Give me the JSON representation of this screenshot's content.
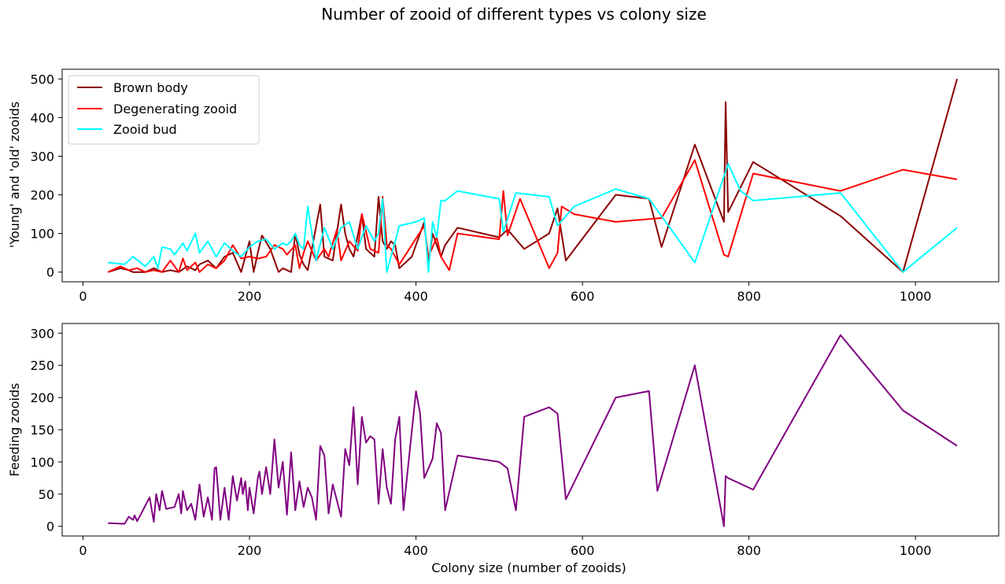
{
  "title": "Number of zooid of different types vs colony size",
  "chart_data": [
    {
      "type": "line",
      "xlabel": "",
      "ylabel": "'Young' and 'old' zooids",
      "xlim": [
        -25,
        1100
      ],
      "ylim": [
        -25,
        525
      ],
      "xticks": [
        0,
        200,
        400,
        600,
        800,
        1000
      ],
      "yticks": [
        0,
        100,
        200,
        300,
        400,
        500
      ],
      "legend": "top-left",
      "series": [
        {
          "name": "Brown body",
          "color": "#8b0000",
          "x": [
            30,
            45,
            55,
            60,
            75,
            85,
            95,
            105,
            115,
            125,
            135,
            140,
            150,
            160,
            170,
            180,
            190,
            200,
            205,
            210,
            215,
            225,
            235,
            240,
            250,
            255,
            260,
            265,
            270,
            275,
            285,
            290,
            300,
            310,
            315,
            320,
            325,
            335,
            340,
            350,
            355,
            360,
            365,
            370,
            375,
            380,
            395,
            410,
            415,
            420,
            425,
            430,
            435,
            450,
            500,
            510,
            520,
            530,
            560,
            570,
            580,
            640,
            680,
            695,
            735,
            770,
            772,
            775,
            805,
            910,
            985,
            1050
          ],
          "y": [
            0,
            10,
            5,
            0,
            0,
            10,
            0,
            5,
            0,
            15,
            5,
            20,
            30,
            10,
            40,
            50,
            0,
            80,
            0,
            50,
            95,
            60,
            0,
            10,
            0,
            100,
            45,
            20,
            5,
            60,
            175,
            40,
            30,
            175,
            100,
            60,
            40,
            150,
            60,
            40,
            195,
            80,
            60,
            80,
            70,
            10,
            40,
            130,
            20,
            100,
            70,
            40,
            70,
            115,
            90,
            110,
            85,
            60,
            100,
            165,
            30,
            200,
            190,
            65,
            330,
            130,
            440,
            155,
            285,
            145,
            0,
            500
          ]
        },
        {
          "name": "Degenerating zooid",
          "color": "#ff0000",
          "x": [
            30,
            45,
            55,
            65,
            75,
            85,
            95,
            105,
            115,
            120,
            125,
            135,
            140,
            150,
            160,
            170,
            180,
            190,
            200,
            210,
            220,
            230,
            240,
            245,
            255,
            260,
            265,
            270,
            280,
            290,
            295,
            305,
            310,
            320,
            330,
            335,
            345,
            355,
            360,
            365,
            370,
            380,
            410,
            415,
            425,
            430,
            440,
            450,
            500,
            505,
            510,
            525,
            560,
            570,
            575,
            590,
            640,
            695,
            735,
            770,
            775,
            805,
            910,
            985,
            1050
          ],
          "y": [
            0,
            15,
            5,
            10,
            0,
            5,
            0,
            30,
            0,
            35,
            5,
            25,
            0,
            20,
            10,
            30,
            70,
            35,
            40,
            35,
            40,
            70,
            60,
            45,
            70,
            10,
            50,
            80,
            30,
            60,
            40,
            110,
            30,
            80,
            55,
            150,
            60,
            50,
            195,
            70,
            60,
            20,
            120,
            40,
            90,
            40,
            5,
            100,
            85,
            210,
            95,
            190,
            10,
            50,
            170,
            150,
            130,
            140,
            290,
            45,
            40,
            255,
            210,
            265,
            240
          ]
        },
        {
          "name": "Zooid bud",
          "color": "#00ffff",
          "x": [
            30,
            50,
            60,
            75,
            85,
            90,
            95,
            105,
            110,
            120,
            125,
            135,
            140,
            150,
            160,
            170,
            180,
            190,
            200,
            210,
            220,
            230,
            240,
            245,
            250,
            255,
            260,
            265,
            270,
            280,
            290,
            300,
            310,
            320,
            330,
            340,
            350,
            355,
            360,
            365,
            375,
            380,
            400,
            410,
            415,
            420,
            425,
            430,
            435,
            450,
            500,
            505,
            520,
            560,
            570,
            590,
            640,
            680,
            735,
            775,
            790,
            805,
            910,
            985,
            1050
          ],
          "y": [
            25,
            20,
            40,
            15,
            40,
            10,
            65,
            60,
            45,
            75,
            55,
            100,
            50,
            80,
            40,
            75,
            55,
            40,
            65,
            80,
            85,
            60,
            75,
            70,
            80,
            100,
            70,
            60,
            170,
            30,
            115,
            60,
            115,
            130,
            60,
            120,
            80,
            100,
            190,
            0,
            80,
            120,
            130,
            140,
            0,
            130,
            90,
            185,
            185,
            210,
            190,
            105,
            205,
            195,
            120,
            170,
            215,
            190,
            25,
            280,
            210,
            185,
            205,
            0,
            115
          ]
        }
      ]
    },
    {
      "type": "line",
      "xlabel": "Colony size (number of zooids)",
      "ylabel": "Feeding zooids",
      "xlim": [
        -25,
        1100
      ],
      "ylim": [
        -15,
        315
      ],
      "xticks": [
        0,
        200,
        400,
        600,
        800,
        1000
      ],
      "yticks": [
        0,
        50,
        100,
        150,
        200,
        250,
        300
      ],
      "series": [
        {
          "name": "",
          "color": "#800080",
          "x": [
            30,
            50,
            55,
            60,
            62,
            65,
            70,
            80,
            85,
            88,
            92,
            95,
            100,
            110,
            115,
            118,
            120,
            125,
            130,
            135,
            140,
            145,
            150,
            155,
            158,
            160,
            165,
            170,
            175,
            180,
            185,
            190,
            192,
            195,
            198,
            200,
            205,
            210,
            212,
            215,
            220,
            225,
            230,
            235,
            240,
            245,
            250,
            255,
            260,
            265,
            270,
            275,
            280,
            285,
            290,
            295,
            300,
            305,
            310,
            315,
            320,
            325,
            330,
            335,
            340,
            345,
            350,
            355,
            360,
            365,
            370,
            375,
            380,
            385,
            400,
            405,
            410,
            420,
            425,
            430,
            435,
            450,
            500,
            510,
            520,
            530,
            560,
            570,
            580,
            640,
            680,
            690,
            735,
            770,
            772,
            775,
            805,
            910,
            985,
            1050
          ],
          "y": [
            5,
            4,
            15,
            10,
            17,
            8,
            20,
            45,
            7,
            50,
            25,
            55,
            27,
            30,
            50,
            20,
            55,
            25,
            35,
            10,
            65,
            15,
            45,
            10,
            90,
            92,
            10,
            60,
            10,
            78,
            40,
            75,
            50,
            70,
            25,
            60,
            20,
            75,
            85,
            50,
            92,
            50,
            135,
            60,
            100,
            18,
            115,
            25,
            70,
            30,
            60,
            45,
            10,
            125,
            110,
            20,
            65,
            40,
            15,
            120,
            95,
            185,
            65,
            170,
            130,
            140,
            135,
            35,
            120,
            60,
            35,
            135,
            170,
            25,
            210,
            175,
            75,
            105,
            160,
            145,
            25,
            110,
            100,
            90,
            25,
            170,
            185,
            175,
            42,
            200,
            210,
            55,
            250,
            0,
            78,
            75,
            57,
            297,
            180,
            125
          ]
        }
      ]
    }
  ]
}
